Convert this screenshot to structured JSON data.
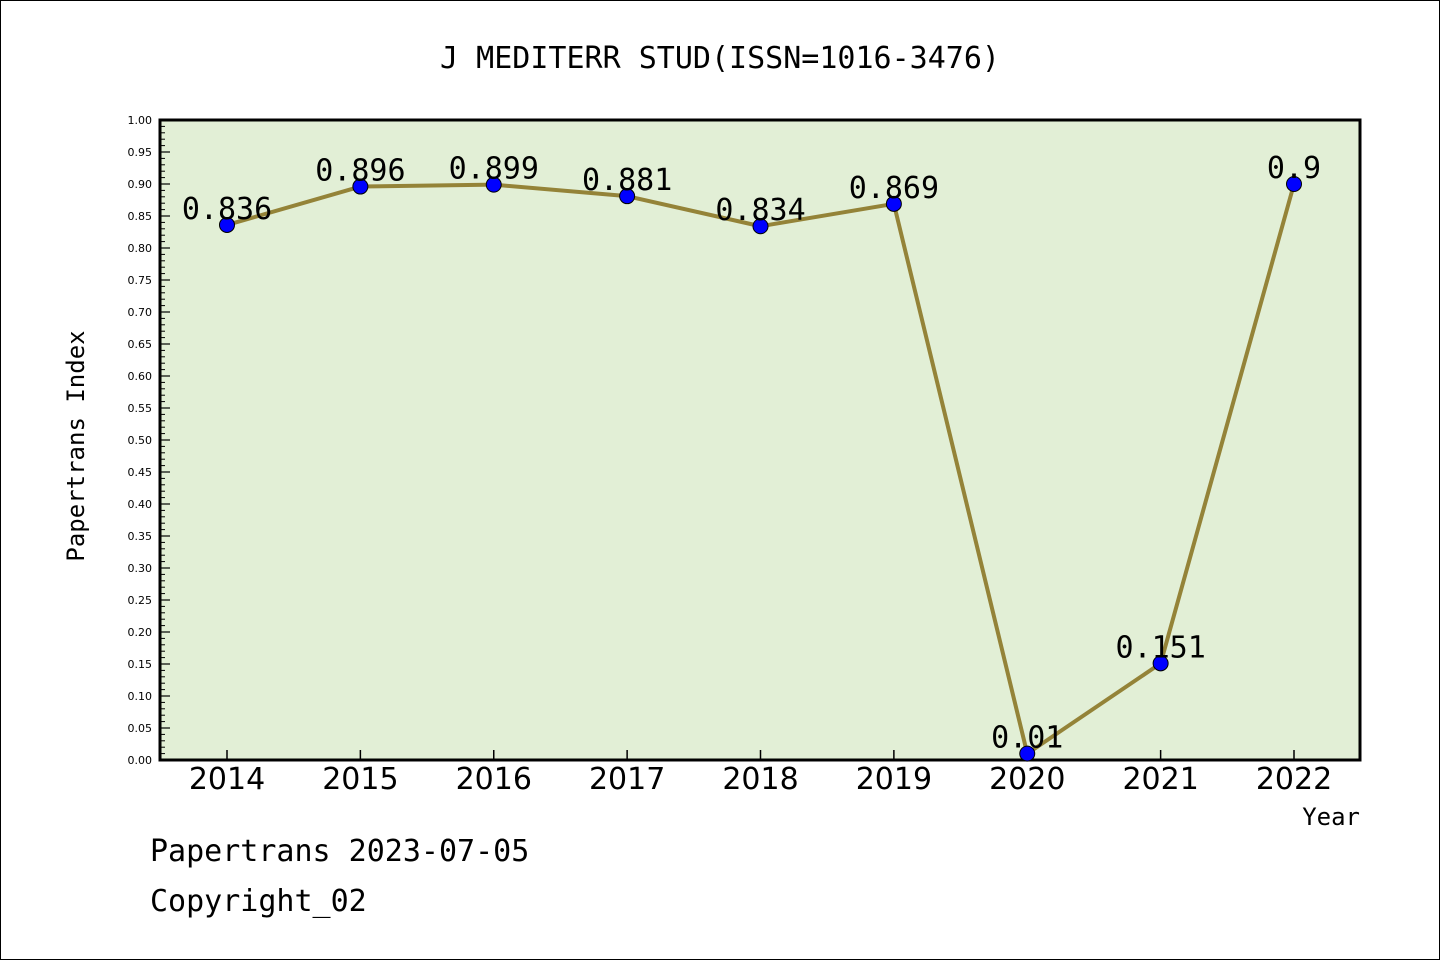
{
  "chart_data": {
    "type": "line",
    "title": "J MEDITERR STUD(ISSN=1016-3476)",
    "xlabel": "Year",
    "ylabel": "Papertrans Index",
    "categories": [
      "2014",
      "2015",
      "2016",
      "2017",
      "2018",
      "2019",
      "2020",
      "2021",
      "2022"
    ],
    "series": [
      {
        "values": [
          0.836,
          0.896,
          0.899,
          0.881,
          0.834,
          0.869,
          0.01,
          0.151,
          0.9
        ],
        "labels": [
          "0.836",
          "0.896",
          "0.899",
          "0.881",
          "0.834",
          "0.869",
          "0.01",
          "0.151",
          "0.9"
        ]
      }
    ],
    "ylim": [
      0,
      1
    ],
    "yticks": [
      "0.00",
      "0.05",
      "0.10",
      "0.15",
      "0.20",
      "0.25",
      "0.30",
      "0.35",
      "0.40",
      "0.45",
      "0.50",
      "0.55",
      "0.60",
      "0.65",
      "0.70",
      "0.75",
      "0.80",
      "0.85",
      "0.90",
      "0.95",
      "1.00"
    ],
    "grid": false,
    "colors": {
      "plot_background": "#e2efd6",
      "line": "#948338",
      "marker": "#0000ff"
    }
  },
  "footer": {
    "line1": "Papertrans 2023-07-05",
    "line2": "Copyright_02"
  }
}
